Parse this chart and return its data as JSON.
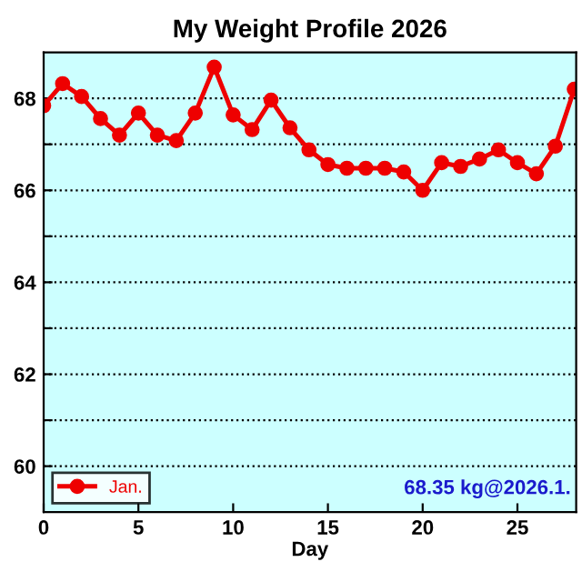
{
  "chart_data": {
    "type": "line",
    "title": "My Weight Profile 2026",
    "xlabel": "Day",
    "x": [
      0,
      1,
      2,
      3,
      4,
      5,
      6,
      7,
      8,
      9,
      10,
      11,
      12,
      13,
      14,
      15,
      16,
      17,
      18,
      19,
      20,
      21,
      22,
      23,
      24,
      25,
      26,
      27,
      28
    ],
    "series": [
      {
        "name": "Jan.",
        "color": "#ee0000",
        "values": [
          67.84,
          68.32,
          68.04,
          67.56,
          67.2,
          67.68,
          67.2,
          67.08,
          67.68,
          68.68,
          67.64,
          67.32,
          67.96,
          67.36,
          66.88,
          66.56,
          66.48,
          66.48,
          66.48,
          66.4,
          66.0,
          66.6,
          66.52,
          66.68,
          66.88,
          66.6,
          66.36,
          66.96,
          68.2
        ]
      }
    ],
    "xlim": [
      0,
      28.1
    ],
    "xticks": [
      0,
      5,
      10,
      15,
      20,
      25
    ],
    "ylim": [
      59,
      69
    ],
    "yticks": [
      60,
      {
        "value": 61,
        "label": null
      },
      62,
      {
        "value": 63,
        "label": null
      },
      64,
      {
        "value": 65,
        "label": null
      },
      66,
      {
        "value": 67,
        "label": null
      },
      68
    ],
    "grid": "y",
    "legend": "bottom left",
    "marker": "circle",
    "line_style": "solid",
    "annotations": [
      "68.35 kg@2026.1."
    ]
  }
}
